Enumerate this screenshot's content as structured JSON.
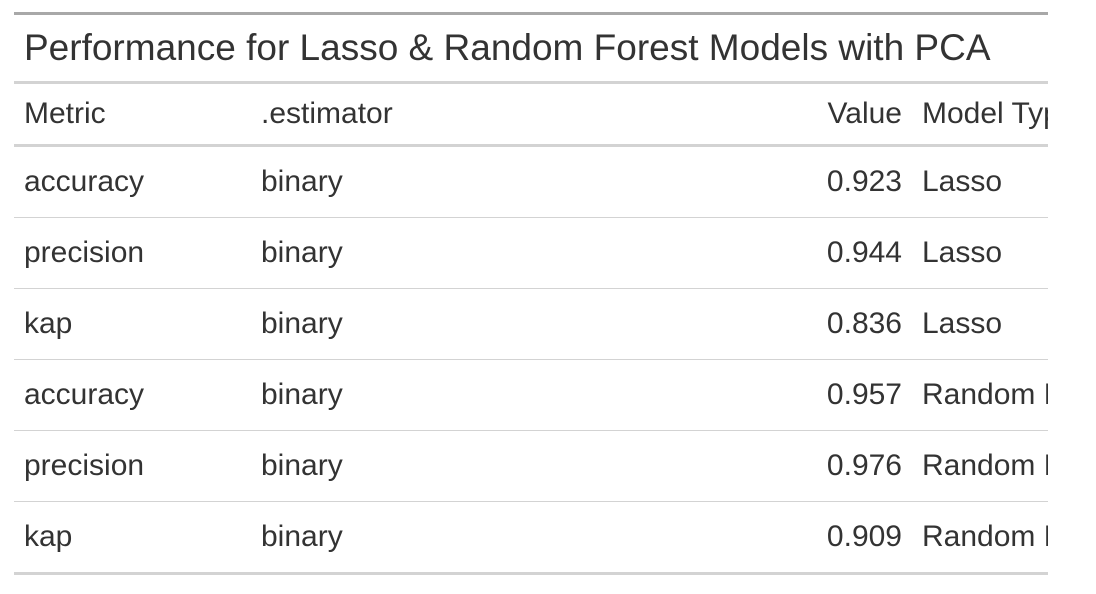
{
  "chart_data": {
    "type": "table",
    "title": "Performance for Lasso & Random Forest Models with PCA",
    "columns": [
      "Metric",
      ".estimator",
      "Value",
      "Model Type"
    ],
    "rows": [
      [
        "accuracy",
        "binary",
        "0.923",
        "Lasso"
      ],
      [
        "precision",
        "binary",
        "0.944",
        "Lasso"
      ],
      [
        "kap",
        "binary",
        "0.836",
        "Lasso"
      ],
      [
        "accuracy",
        "binary",
        "0.957",
        "Random Forest"
      ],
      [
        "precision",
        "binary",
        "0.976",
        "Random Forest"
      ],
      [
        "kap",
        "binary",
        "0.909",
        "Random Forest"
      ]
    ]
  }
}
